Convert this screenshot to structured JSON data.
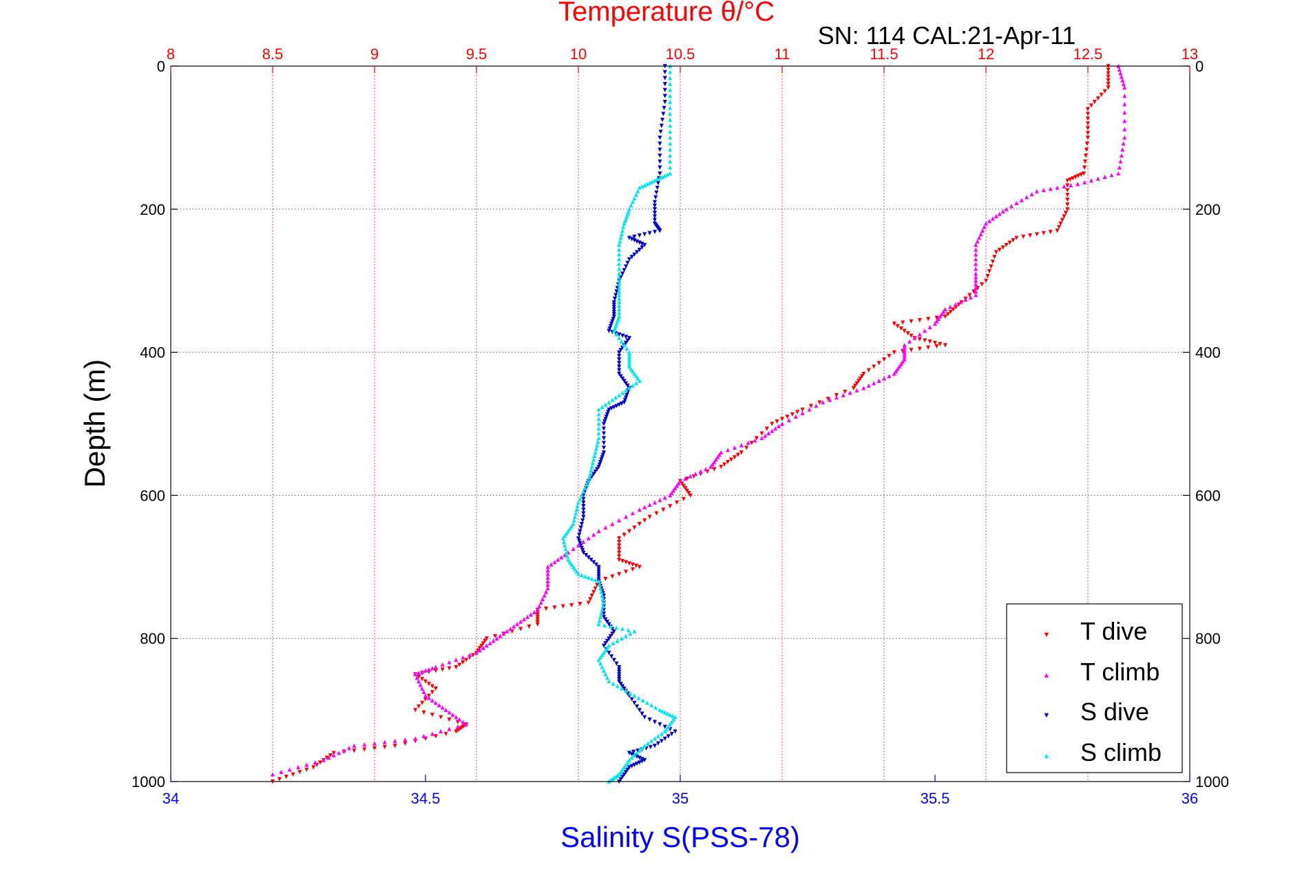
{
  "chart_data": {
    "type": "scatter",
    "title": "Temperature θ/°C",
    "subtitle": "SN: 114  CAL:21-Apr-11",
    "xlabel": "Salinity S(PSS-78)",
    "ylabel": "Depth (m)",
    "xlim": [
      34,
      36
    ],
    "x2lim": [
      8,
      13
    ],
    "ylim": [
      1000,
      0
    ],
    "x_ticks": [
      "34",
      "34.5",
      "35",
      "35.5",
      "36"
    ],
    "x2_ticks": [
      "8",
      "8.5",
      "9",
      "9.5",
      "10",
      "10.5",
      "11",
      "11.5",
      "12",
      "12.5",
      "13"
    ],
    "y_ticks": [
      "0",
      "200",
      "400",
      "600",
      "800",
      "1000"
    ],
    "grid": true,
    "legend_position": "bottom-right",
    "colors": {
      "temperature_axis": "#ff0000",
      "salinity_axis": "#0000ff",
      "depth_grid": "#555555"
    },
    "series": [
      {
        "name": "T dive",
        "axis": "temperature",
        "color": "#ff0000",
        "marker": "triangle-down",
        "points": [
          [
            12.6,
            0
          ],
          [
            12.6,
            30
          ],
          [
            12.5,
            60
          ],
          [
            12.5,
            100
          ],
          [
            12.48,
            150
          ],
          [
            12.4,
            160
          ],
          [
            12.4,
            200
          ],
          [
            12.35,
            230
          ],
          [
            12.15,
            240
          ],
          [
            12.05,
            260
          ],
          [
            12.0,
            300
          ],
          [
            11.88,
            330
          ],
          [
            11.8,
            350
          ],
          [
            11.55,
            360
          ],
          [
            11.65,
            380
          ],
          [
            11.8,
            390
          ],
          [
            11.55,
            400
          ],
          [
            11.4,
            430
          ],
          [
            11.35,
            450
          ],
          [
            11.1,
            480
          ],
          [
            10.95,
            500
          ],
          [
            10.8,
            540
          ],
          [
            10.7,
            560
          ],
          [
            10.5,
            580
          ],
          [
            10.55,
            600
          ],
          [
            10.35,
            630
          ],
          [
            10.2,
            660
          ],
          [
            10.2,
            690
          ],
          [
            10.3,
            700
          ],
          [
            10.1,
            720
          ],
          [
            10.05,
            750
          ],
          [
            9.8,
            760
          ],
          [
            9.8,
            780
          ],
          [
            9.55,
            800
          ],
          [
            9.5,
            820
          ],
          [
            9.4,
            840
          ],
          [
            9.2,
            850
          ],
          [
            9.3,
            870
          ],
          [
            9.2,
            900
          ],
          [
            9.45,
            920
          ],
          [
            9.4,
            930
          ],
          [
            9.1,
            950
          ],
          [
            8.8,
            960
          ],
          [
            8.7,
            980
          ],
          [
            8.5,
            1000
          ]
        ]
      },
      {
        "name": "T climb",
        "axis": "temperature",
        "color": "#ff00ff",
        "marker": "triangle-up",
        "points": [
          [
            12.65,
            0
          ],
          [
            12.68,
            30
          ],
          [
            12.68,
            100
          ],
          [
            12.65,
            150
          ],
          [
            12.45,
            165
          ],
          [
            12.25,
            175
          ],
          [
            12.1,
            200
          ],
          [
            12.0,
            220
          ],
          [
            11.95,
            250
          ],
          [
            11.95,
            290
          ],
          [
            11.95,
            320
          ],
          [
            11.8,
            340
          ],
          [
            11.75,
            360
          ],
          [
            11.6,
            390
          ],
          [
            11.6,
            410
          ],
          [
            11.55,
            430
          ],
          [
            11.4,
            450
          ],
          [
            11.2,
            470
          ],
          [
            11.0,
            500
          ],
          [
            10.9,
            520
          ],
          [
            10.7,
            540
          ],
          [
            10.65,
            560
          ],
          [
            10.5,
            580
          ],
          [
            10.45,
            600
          ],
          [
            10.3,
            620
          ],
          [
            10.1,
            650
          ],
          [
            9.95,
            680
          ],
          [
            9.85,
            700
          ],
          [
            9.85,
            730
          ],
          [
            9.8,
            760
          ],
          [
            9.7,
            780
          ],
          [
            9.6,
            800
          ],
          [
            9.5,
            820
          ],
          [
            9.3,
            840
          ],
          [
            9.2,
            850
          ],
          [
            9.25,
            880
          ],
          [
            9.35,
            900
          ],
          [
            9.45,
            920
          ],
          [
            9.2,
            940
          ],
          [
            8.9,
            950
          ],
          [
            8.75,
            970
          ],
          [
            8.5,
            990
          ]
        ]
      },
      {
        "name": "S dive",
        "axis": "salinity",
        "color": "#0000cc",
        "marker": "triangle-down",
        "points": [
          [
            34.97,
            0
          ],
          [
            34.97,
            50
          ],
          [
            34.96,
            100
          ],
          [
            34.96,
            150
          ],
          [
            34.95,
            190
          ],
          [
            34.95,
            220
          ],
          [
            34.96,
            230
          ],
          [
            34.9,
            240
          ],
          [
            34.93,
            250
          ],
          [
            34.9,
            270
          ],
          [
            34.88,
            300
          ],
          [
            34.87,
            330
          ],
          [
            34.87,
            350
          ],
          [
            34.86,
            370
          ],
          [
            34.9,
            380
          ],
          [
            34.88,
            400
          ],
          [
            34.88,
            430
          ],
          [
            34.9,
            450
          ],
          [
            34.89,
            470
          ],
          [
            34.86,
            480
          ],
          [
            34.85,
            500
          ],
          [
            34.85,
            540
          ],
          [
            34.84,
            560
          ],
          [
            34.82,
            580
          ],
          [
            34.81,
            600
          ],
          [
            34.81,
            630
          ],
          [
            34.8,
            660
          ],
          [
            34.81,
            680
          ],
          [
            34.84,
            700
          ],
          [
            34.84,
            720
          ],
          [
            34.85,
            740
          ],
          [
            34.85,
            770
          ],
          [
            34.87,
            790
          ],
          [
            34.85,
            810
          ],
          [
            34.88,
            840
          ],
          [
            34.88,
            860
          ],
          [
            34.9,
            880
          ],
          [
            34.93,
            910
          ],
          [
            34.99,
            930
          ],
          [
            34.95,
            950
          ],
          [
            34.9,
            960
          ],
          [
            34.93,
            970
          ],
          [
            34.9,
            980
          ],
          [
            34.88,
            1000
          ]
        ]
      },
      {
        "name": "S climb",
        "axis": "salinity",
        "color": "#00e5ee",
        "marker": "triangle-up",
        "points": [
          [
            34.98,
            0
          ],
          [
            34.98,
            50
          ],
          [
            34.98,
            100
          ],
          [
            34.98,
            150
          ],
          [
            34.95,
            160
          ],
          [
            34.92,
            170
          ],
          [
            34.9,
            200
          ],
          [
            34.89,
            220
          ],
          [
            34.88,
            250
          ],
          [
            34.88,
            290
          ],
          [
            34.88,
            320
          ],
          [
            34.88,
            350
          ],
          [
            34.87,
            370
          ],
          [
            34.9,
            400
          ],
          [
            34.9,
            420
          ],
          [
            34.92,
            440
          ],
          [
            34.88,
            460
          ],
          [
            34.84,
            480
          ],
          [
            34.84,
            520
          ],
          [
            34.83,
            550
          ],
          [
            34.82,
            580
          ],
          [
            34.8,
            610
          ],
          [
            34.79,
            640
          ],
          [
            34.77,
            660
          ],
          [
            34.78,
            690
          ],
          [
            34.8,
            710
          ],
          [
            34.84,
            720
          ],
          [
            34.85,
            750
          ],
          [
            34.84,
            780
          ],
          [
            34.91,
            790
          ],
          [
            34.86,
            810
          ],
          [
            34.84,
            830
          ],
          [
            34.86,
            860
          ],
          [
            34.91,
            880
          ],
          [
            34.96,
            900
          ],
          [
            34.99,
            910
          ],
          [
            34.97,
            930
          ],
          [
            34.93,
            950
          ],
          [
            34.9,
            970
          ],
          [
            34.88,
            990
          ],
          [
            34.86,
            1000
          ]
        ]
      }
    ]
  },
  "legend": {
    "items": [
      {
        "label": "T dive",
        "symbol": "▼",
        "color": "#ff0000"
      },
      {
        "label": "T climb",
        "symbol": "▲",
        "color": "#ff00ff"
      },
      {
        "label": "S dive",
        "symbol": "▼",
        "color": "#0000cc"
      },
      {
        "label": "S climb",
        "symbol": "▲",
        "color": "#00e5ee"
      }
    ]
  }
}
